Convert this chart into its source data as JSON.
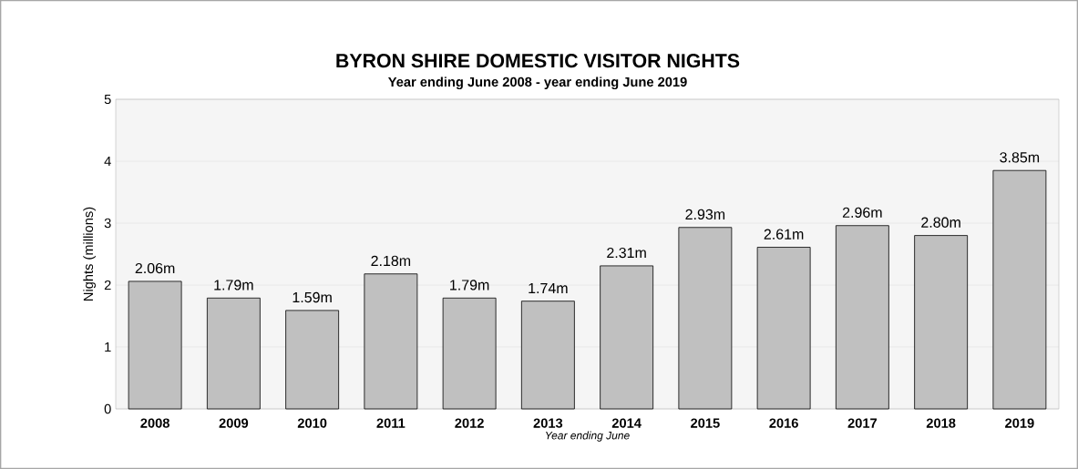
{
  "chart_data": {
    "type": "bar",
    "title": "BYRON SHIRE DOMESTIC VISITOR NIGHTS",
    "subtitle": "Year ending June 2008 - year ending June 2019",
    "xlabel": "Year ending June",
    "ylabel": "Nights (millions)",
    "categories": [
      "2008",
      "2009",
      "2010",
      "2011",
      "2012",
      "2013",
      "2014",
      "2015",
      "2016",
      "2017",
      "2018",
      "2019"
    ],
    "values": [
      2.06,
      1.79,
      1.59,
      2.18,
      1.79,
      1.74,
      2.31,
      2.93,
      2.61,
      2.96,
      2.8,
      3.85
    ],
    "value_labels": [
      "2.06m",
      "1.79m",
      "1.59m",
      "2.18m",
      "1.79m",
      "1.74m",
      "2.31m",
      "2.93m",
      "2.61m",
      "2.96m",
      "2.80m",
      "3.85m"
    ],
    "color": "#c0c0c0",
    "ylim": [
      0,
      5
    ],
    "yticks": [
      0,
      1,
      2,
      3,
      4,
      5
    ],
    "grid": "y"
  }
}
